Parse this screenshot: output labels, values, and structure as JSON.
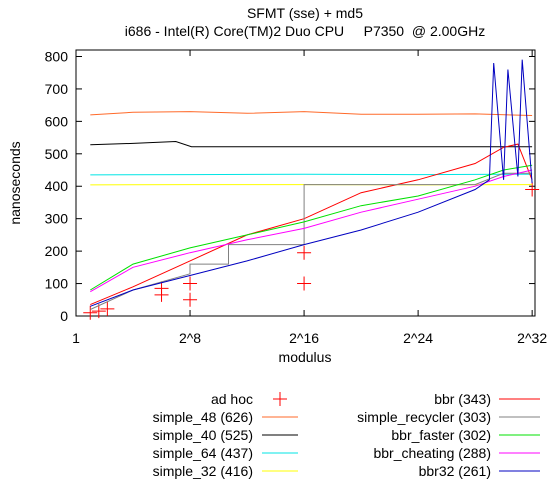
{
  "chart_data": {
    "type": "line",
    "title": "SFMT (sse) + md5",
    "subtitle": "i686 - Intel(R) Core(TM)2 Duo CPU     P7350  @ 2.00GHz",
    "xlabel": "modulus",
    "ylabel": "nanoseconds",
    "xscale": "log2",
    "xlim": [
      0,
      32.2
    ],
    "ylim": [
      0,
      820
    ],
    "x_ticks": [
      {
        "v": 0,
        "label": "1"
      },
      {
        "v": 8,
        "label": "2^8"
      },
      {
        "v": 16,
        "label": "2^16"
      },
      {
        "v": 24,
        "label": "2^24"
      },
      {
        "v": 32,
        "label": "2^32"
      }
    ],
    "y_ticks": [
      0,
      100,
      200,
      300,
      400,
      500,
      600,
      700,
      800
    ],
    "grid": false,
    "legend_placement": "bottom",
    "series": [
      {
        "name": "ad hoc",
        "color": "#ff0000",
        "kind": "points",
        "x": [
          1,
          1.6,
          2.2,
          6,
          6,
          8,
          8,
          16,
          16,
          32
        ],
        "y": [
          10,
          15,
          22,
          65,
          85,
          50,
          100,
          100,
          195,
          390
        ]
      },
      {
        "name": "simple_48 (626)",
        "color": "#ff6a2a",
        "kind": "line",
        "x": [
          1,
          4,
          8,
          12,
          16,
          20,
          24,
          28,
          32
        ],
        "y": [
          620,
          628,
          630,
          625,
          630,
          622,
          622,
          623,
          618
        ]
      },
      {
        "name": "simple_40 (525)",
        "color": "#000000",
        "kind": "line",
        "x": [
          1,
          4,
          7,
          8.1,
          12,
          16,
          20,
          24,
          28,
          32
        ],
        "y": [
          528,
          532,
          538,
          522,
          522,
          522,
          522,
          522,
          522,
          522
        ]
      },
      {
        "name": "simple_64 (437)",
        "color": "#00e5e5",
        "kind": "line",
        "x": [
          1,
          8,
          16,
          24,
          32
        ],
        "y": [
          435,
          436,
          437,
          436,
          437
        ]
      },
      {
        "name": "simple_32 (416)",
        "color": "#ffff00",
        "kind": "line",
        "x": [
          1,
          8,
          16,
          24,
          32
        ],
        "y": [
          404,
          405,
          405,
          404,
          405
        ]
      },
      {
        "name": "bbr (343)",
        "color": "#ff0000",
        "kind": "line",
        "x": [
          1,
          4,
          8,
          12,
          16,
          20,
          24,
          28,
          30,
          31,
          32
        ],
        "y": [
          35,
          90,
          170,
          250,
          300,
          380,
          420,
          470,
          520,
          530,
          420
        ]
      },
      {
        "name": "simple_recycler (303)",
        "color": "#808080",
        "kind": "line",
        "x": [
          1,
          4,
          8,
          8,
          10.7,
          10.7,
          16,
          16,
          24,
          28,
          30,
          32
        ],
        "y": [
          20,
          80,
          130,
          160,
          160,
          220,
          220,
          405,
          405,
          405,
          440,
          440
        ]
      },
      {
        "name": "bbr_faster (302)",
        "color": "#00e000",
        "kind": "line",
        "x": [
          1,
          4,
          8,
          12,
          16,
          20,
          24,
          28,
          30,
          32
        ],
        "y": [
          80,
          160,
          210,
          250,
          290,
          340,
          370,
          420,
          450,
          465
        ]
      },
      {
        "name": "bbr_cheating (288)",
        "color": "#ff00ff",
        "kind": "line",
        "x": [
          1,
          4,
          8,
          12,
          16,
          20,
          24,
          28,
          30,
          32
        ],
        "y": [
          75,
          150,
          195,
          235,
          270,
          320,
          360,
          400,
          430,
          450
        ]
      },
      {
        "name": "bbr32 (261)",
        "color": "#0000c0",
        "kind": "line",
        "x": [
          1,
          4,
          8,
          12,
          16,
          20,
          24,
          28,
          29,
          29.3,
          30,
          30.3,
          31,
          31.3,
          32
        ],
        "y": [
          30,
          80,
          125,
          170,
          220,
          265,
          320,
          390,
          420,
          780,
          420,
          760,
          430,
          790,
          410
        ]
      }
    ]
  }
}
